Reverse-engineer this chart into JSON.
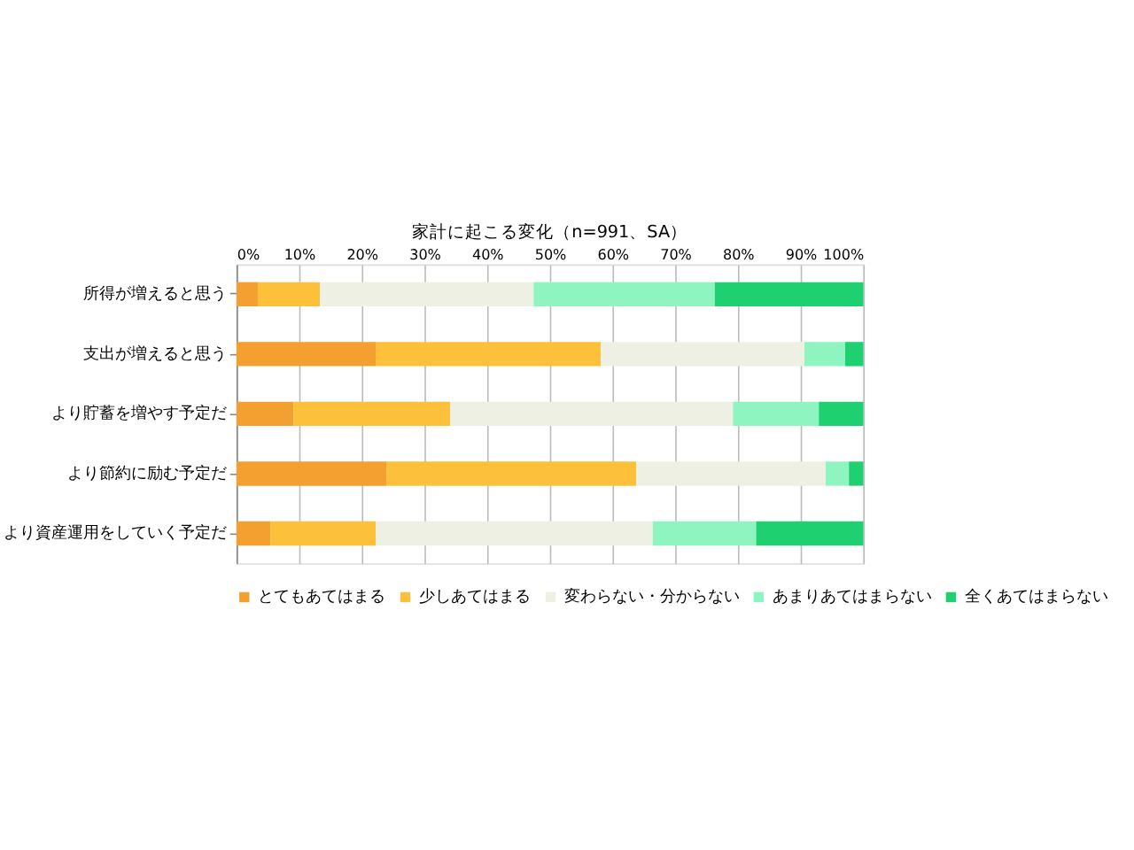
{
  "chart_data": {
    "type": "bar",
    "orientation": "horizontal",
    "stacked": true,
    "title": "家計に起こる変化（n=991、SA）",
    "categories": [
      "所得が増えると思う",
      "支出が増えると思う",
      "より貯蓄を増やす予定だ",
      "より節約に励む予定だ",
      "より資産運用をしていく予定だ"
    ],
    "series": [
      {
        "name": "とてもあてはまる",
        "color": "#f4a030",
        "values": [
          3.4,
          22.2,
          9.1,
          23.9,
          5.4
        ]
      },
      {
        "name": "少しあてはまる",
        "color": "#fcc03a",
        "values": [
          9.9,
          35.9,
          25.0,
          39.9,
          16.8
        ]
      },
      {
        "name": "変わらない・分からない",
        "color": "#eef0e4",
        "values": [
          34.1,
          32.5,
          45.1,
          30.2,
          44.2
        ]
      },
      {
        "name": "あまりあてはまらない",
        "color": "#8ff5c0",
        "values": [
          28.9,
          6.5,
          13.7,
          3.7,
          16.5
        ]
      },
      {
        "name": "全くあてはまらない",
        "color": "#1ed070",
        "values": [
          23.7,
          2.9,
          7.1,
          2.3,
          17.1
        ]
      }
    ],
    "xlim": [
      0,
      100
    ],
    "xticks": [
      {
        "value": 0,
        "label": "0%"
      },
      {
        "value": 10,
        "label": "10%"
      },
      {
        "value": 20,
        "label": "20%"
      },
      {
        "value": 30,
        "label": "30%"
      },
      {
        "value": 40,
        "label": "40%"
      },
      {
        "value": 50,
        "label": "50%"
      },
      {
        "value": 60,
        "label": "60%"
      },
      {
        "value": 70,
        "label": "70%"
      },
      {
        "value": 80,
        "label": "80%"
      },
      {
        "value": 90,
        "label": "90%"
      },
      {
        "value": 100,
        "label": "100%"
      }
    ],
    "grid": "x",
    "legend": "bottom"
  }
}
